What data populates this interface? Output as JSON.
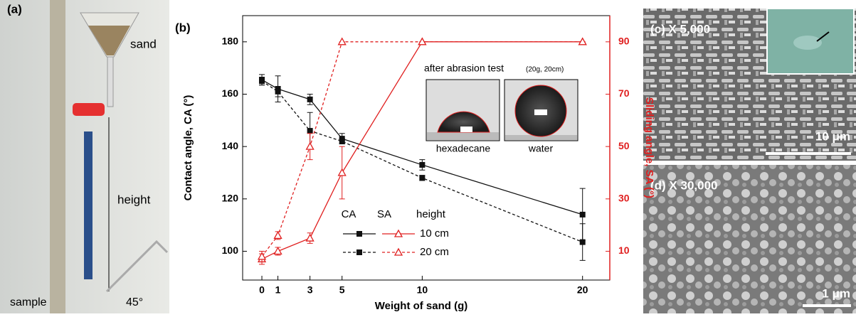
{
  "chart_data": {
    "type": "line",
    "panel_label": "(b)",
    "xlabel": "Weight of sand (g)",
    "ylabel": "Contact angle, CA (°)",
    "y2label": "Sliding angle, SA (°)",
    "x": [
      0,
      1,
      3,
      5,
      10,
      20
    ],
    "xlim": [
      -1.2,
      21.7
    ],
    "xticks": [
      0,
      1,
      3,
      5,
      10,
      20
    ],
    "ylim": [
      89,
      190
    ],
    "yticks": [
      100,
      120,
      140,
      160,
      180
    ],
    "y2lim": [
      -1,
      100
    ],
    "y2ticks": [
      10,
      30,
      50,
      70,
      90
    ],
    "y2color": "#e02020",
    "series": [
      {
        "color": "#111111",
        "dash": false,
        "marker": "square",
        "values": [
          165.5,
          162,
          158,
          143,
          133,
          114
        ],
        "errors": [
          2,
          5,
          2,
          2,
          2,
          10
        ]
      },
      {
        "color": "#111111",
        "dash": true,
        "marker": "square",
        "values": [
          165,
          161,
          146,
          142,
          128,
          103.5
        ],
        "errors": [
          1.5,
          2,
          7,
          1,
          1,
          7
        ]
      },
      {
        "color": "#e02020",
        "dash": false,
        "marker": "triangle",
        "axis": "y2",
        "values": [
          7,
          10,
          15,
          40,
          90,
          90
        ],
        "errors": [
          2,
          1.5,
          2,
          10,
          0,
          0
        ]
      },
      {
        "color": "#e02020",
        "dash": true,
        "marker": "triangle",
        "axis": "y2",
        "values": [
          8,
          16,
          50,
          90,
          90,
          90
        ],
        "errors": [
          2,
          1.5,
          5,
          0,
          0,
          0
        ]
      }
    ],
    "legend": {
      "headers": [
        "CA",
        "SA",
        "height"
      ],
      "rows": [
        "10 cm",
        "20 cm"
      ]
    },
    "inset": {
      "title": "after abrasion test",
      "note": "(20g, 20cm)",
      "labels": [
        "hexadecane",
        "water"
      ]
    }
  },
  "photo_a": {
    "label": "(a)",
    "sand": "sand",
    "height": "height",
    "sample": "sample",
    "angle": "45°"
  },
  "photo_c": {
    "label": "(c) X 5,000",
    "scale": "10 μm"
  },
  "photo_d": {
    "label": "(d) X 30,000",
    "scale": "1 μm"
  }
}
